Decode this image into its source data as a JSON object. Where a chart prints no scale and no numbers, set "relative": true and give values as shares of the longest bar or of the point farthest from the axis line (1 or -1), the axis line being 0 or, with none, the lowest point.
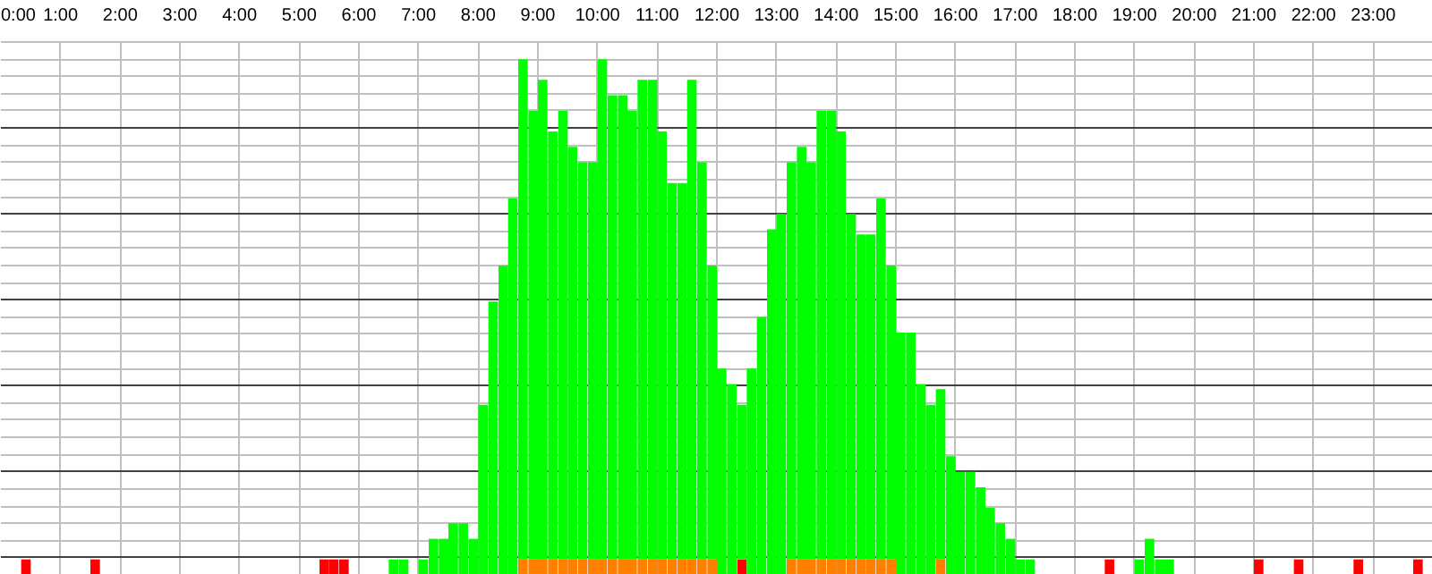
{
  "chart_data": {
    "type": "bar",
    "stacked": true,
    "relative": true,
    "grid": true,
    "tick_labels": "x",
    "xlim": [
      0,
      24
    ],
    "xticks": [
      {
        "value": 0,
        "label": "0:00"
      },
      {
        "value": 1,
        "label": "1:00"
      },
      {
        "value": 2,
        "label": "2:00"
      },
      {
        "value": 3,
        "label": "3:00"
      },
      {
        "value": 4,
        "label": "4:00"
      },
      {
        "value": 5,
        "label": "5:00"
      },
      {
        "value": 6,
        "label": "6:00"
      },
      {
        "value": 7,
        "label": "7:00"
      },
      {
        "value": 8,
        "label": "8:00"
      },
      {
        "value": 9,
        "label": "9:00"
      },
      {
        "value": 10,
        "label": "10:00"
      },
      {
        "value": 11,
        "label": "11:00"
      },
      {
        "value": 12,
        "label": "12:00"
      },
      {
        "value": 13,
        "label": "13:00"
      },
      {
        "value": 14,
        "label": "14:00"
      },
      {
        "value": 15,
        "label": "15:00"
      },
      {
        "value": 16,
        "label": "16:00"
      },
      {
        "value": 17,
        "label": "17:00"
      },
      {
        "value": 18,
        "label": "18:00"
      },
      {
        "value": 19,
        "label": "19:00"
      },
      {
        "value": 20,
        "label": "20:00"
      },
      {
        "value": 21,
        "label": "21:00"
      },
      {
        "value": 22,
        "label": "22:00"
      },
      {
        "value": 23,
        "label": "23:00"
      }
    ],
    "x": [
      0.08,
      0.25,
      0.42,
      0.58,
      0.75,
      0.92,
      1.08,
      1.25,
      1.42,
      1.58,
      1.75,
      1.92,
      2.08,
      2.25,
      2.42,
      2.58,
      2.75,
      2.92,
      3.08,
      3.25,
      3.42,
      3.58,
      3.75,
      3.92,
      4.08,
      4.25,
      4.42,
      4.58,
      4.75,
      4.92,
      5.08,
      5.25,
      5.42,
      5.58,
      5.75,
      5.92,
      6.08,
      6.25,
      6.42,
      6.58,
      6.75,
      6.92,
      7.08,
      7.25,
      7.42,
      7.58,
      7.75,
      7.92,
      8.08,
      8.25,
      8.42,
      8.58,
      8.75,
      8.92,
      9.08,
      9.25,
      9.42,
      9.58,
      9.75,
      9.92,
      10.08,
      10.25,
      10.42,
      10.58,
      10.75,
      10.92,
      11.08,
      11.25,
      11.42,
      11.58,
      11.75,
      11.92,
      12.08,
      12.25,
      12.42,
      12.58,
      12.75,
      12.92,
      13.08,
      13.25,
      13.42,
      13.58,
      13.75,
      13.92,
      14.08,
      14.25,
      14.42,
      14.58,
      14.75,
      14.92,
      15.08,
      15.25,
      15.42,
      15.58,
      15.75,
      15.92,
      16.08,
      16.25,
      16.42,
      16.58,
      16.75,
      16.92,
      17.08,
      17.25,
      17.42,
      17.58,
      17.75,
      17.92,
      18.08,
      18.25,
      18.42,
      18.58,
      18.75,
      18.92,
      19.08,
      19.25,
      19.42,
      19.58,
      19.75,
      19.92,
      20.08,
      20.25,
      20.42,
      20.58,
      20.75,
      20.92,
      21.08,
      21.25,
      21.42,
      21.58,
      21.75,
      21.92,
      22.08,
      22.25,
      22.42,
      22.58,
      22.75,
      22.92,
      23.08,
      23.25,
      23.42,
      23.58,
      23.75,
      23.92
    ],
    "series": [
      {
        "color": "#ff8000",
        "values": [
          0,
          0,
          0,
          0,
          0,
          0,
          0,
          0,
          0,
          0,
          0,
          0,
          0,
          0,
          0,
          0,
          0,
          0,
          0,
          0,
          0,
          0,
          0,
          0,
          0,
          0,
          0,
          0,
          0,
          0,
          0,
          0,
          0,
          0,
          0,
          0,
          0,
          0,
          0,
          0,
          0,
          0,
          0,
          0,
          0,
          0,
          0,
          0,
          0,
          0,
          0,
          0,
          0.03,
          0.03,
          0.03,
          0.03,
          0.03,
          0.03,
          0.03,
          0.03,
          0.03,
          0.03,
          0.03,
          0.03,
          0.03,
          0.03,
          0.03,
          0.03,
          0.03,
          0.03,
          0.03,
          0.03,
          0,
          0,
          0,
          0,
          0,
          0,
          0,
          0.03,
          0.03,
          0.03,
          0.03,
          0.03,
          0.03,
          0.03,
          0.03,
          0.03,
          0.03,
          0.03,
          0,
          0,
          0,
          0,
          0.03,
          0,
          0,
          0,
          0,
          0,
          0,
          0,
          0,
          0,
          0,
          0,
          0,
          0,
          0,
          0,
          0,
          0,
          0,
          0,
          0,
          0,
          0,
          0,
          0,
          0,
          0,
          0,
          0,
          0,
          0,
          0,
          0,
          0,
          0,
          0,
          0,
          0,
          0,
          0,
          0,
          0,
          0,
          0,
          0,
          0,
          0,
          0,
          0,
          0
        ]
      },
      {
        "color": "#ff0000",
        "values": [
          0,
          0,
          0.03,
          0,
          0,
          0,
          0,
          0,
          0,
          0.03,
          0,
          0,
          0,
          0,
          0,
          0,
          0,
          0,
          0,
          0,
          0,
          0,
          0,
          0,
          0,
          0,
          0,
          0,
          0,
          0,
          0,
          0,
          0.03,
          0.03,
          0.03,
          0,
          0,
          0,
          0,
          0,
          0,
          0,
          0,
          0,
          0,
          0,
          0,
          0,
          0,
          0,
          0,
          0,
          0,
          0,
          0,
          0,
          0,
          0,
          0,
          0,
          0,
          0,
          0,
          0,
          0,
          0,
          0,
          0,
          0,
          0,
          0,
          0,
          0,
          0,
          0.03,
          0,
          0,
          0,
          0,
          0,
          0,
          0,
          0,
          0,
          0,
          0,
          0,
          0,
          0,
          0,
          0,
          0,
          0,
          0,
          0,
          0,
          0,
          0,
          0,
          0,
          0,
          0,
          0,
          0,
          0,
          0,
          0,
          0,
          0,
          0,
          0,
          0.03,
          0,
          0,
          0,
          0,
          0,
          0,
          0,
          0,
          0,
          0,
          0,
          0,
          0,
          0,
          0.03,
          0,
          0,
          0,
          0.03,
          0,
          0,
          0,
          0,
          0,
          0.03,
          0,
          0,
          0,
          0,
          0,
          0.03,
          0
        ]
      },
      {
        "color": "#00ff00",
        "values": [
          0,
          0,
          0,
          0,
          0,
          0,
          0,
          0,
          0,
          0,
          0,
          0,
          0,
          0,
          0,
          0,
          0,
          0,
          0,
          0,
          0,
          0,
          0,
          0,
          0,
          0,
          0,
          0,
          0,
          0,
          0,
          0,
          0,
          0,
          0,
          0,
          0,
          0,
          0,
          0.03,
          0.03,
          0,
          0.03,
          0.07,
          0.07,
          0.1,
          0.1,
          0.07,
          0.33,
          0.53,
          0.6,
          0.73,
          0.97,
          0.87,
          0.93,
          0.83,
          0.87,
          0.8,
          0.77,
          0.77,
          0.97,
          0.9,
          0.9,
          0.87,
          0.93,
          0.93,
          0.83,
          0.73,
          0.73,
          0.93,
          0.77,
          0.57,
          0.4,
          0.37,
          0.3,
          0.4,
          0.5,
          0.67,
          0.7,
          0.77,
          0.8,
          0.77,
          0.87,
          0.87,
          0.83,
          0.67,
          0.63,
          0.63,
          0.7,
          0.57,
          0.47,
          0.47,
          0.37,
          0.33,
          0.33,
          0.23,
          0.2,
          0.2,
          0.17,
          0.13,
          0.1,
          0.07,
          0.03,
          0.03,
          0,
          0,
          0,
          0,
          0,
          0,
          0,
          0,
          0,
          0,
          0.03,
          0.07,
          0.03,
          0.03,
          0,
          0,
          0,
          0,
          0,
          0,
          0,
          0,
          0,
          0,
          0,
          0,
          0,
          0,
          0,
          0,
          0,
          0,
          0,
          0,
          0,
          0,
          0,
          0,
          0,
          0
        ]
      }
    ]
  }
}
